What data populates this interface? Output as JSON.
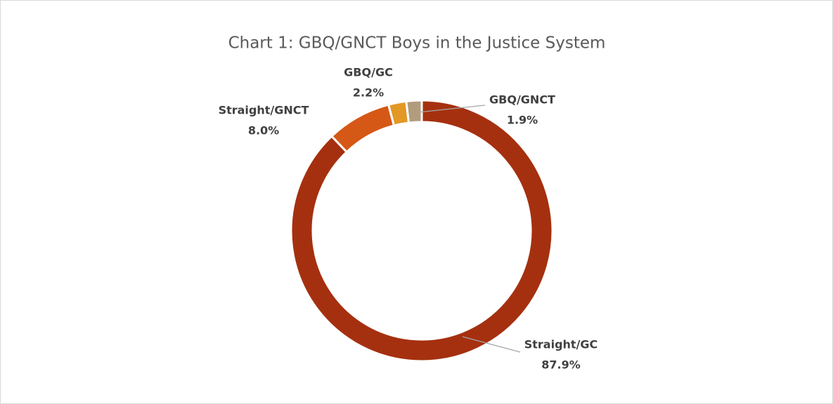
{
  "chart_data": {
    "type": "donut",
    "title": "Chart 1: GBQ/GNCT Boys in the Justice System",
    "categories": [
      "Straight/GC",
      "Straight/GNCT",
      "GBQ/GC",
      "GBQ/GNCT"
    ],
    "values": [
      87.9,
      8.0,
      2.2,
      1.9
    ],
    "value_labels": [
      "87.9%",
      "8.0%",
      "2.2%",
      "1.9%"
    ],
    "colors": [
      "#a5300f",
      "#d55816",
      "#e19825",
      "#b19c7d"
    ]
  }
}
